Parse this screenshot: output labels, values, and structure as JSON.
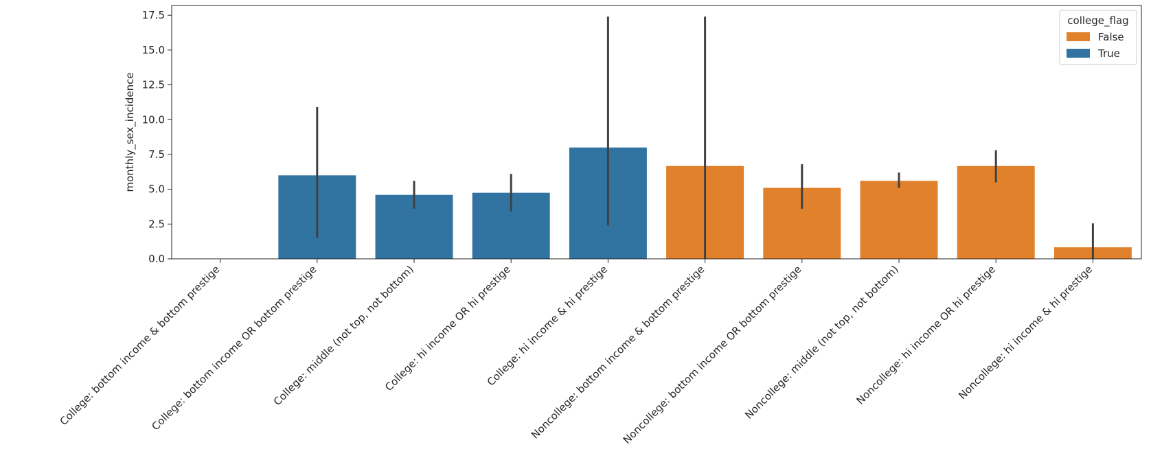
{
  "chart_data": {
    "type": "bar",
    "title": "",
    "xlabel": "",
    "ylabel": "monthly_sex_incidence",
    "ylim": [
      0,
      18.2
    ],
    "yticks": [
      "0.0",
      "2.5",
      "5.0",
      "7.5",
      "10.0",
      "12.5",
      "15.0",
      "17.5"
    ],
    "ytick_values": [
      0,
      2.5,
      5,
      7.5,
      10,
      12.5,
      15,
      17.5
    ],
    "grid": false,
    "legend": {
      "title": "college_flag",
      "placement": "top-right",
      "entries": [
        {
          "label": "False",
          "color": "#e1812c"
        },
        {
          "label": "True",
          "color": "#3274a1"
        }
      ]
    },
    "categories": [
      "College: bottom income & bottom prestige",
      "College: bottom income OR bottom prestige",
      "College: middle (not top, not bottom)",
      "College: hi income OR hi prestige",
      "College: hi income & hi prestige",
      "Noncollege: bottom income & bottom prestige",
      "Noncollege: bottom income OR bottom prestige",
      "Noncollege: middle (not top, not bottom)",
      "Noncollege: hi income OR hi prestige",
      "Noncollege: hi income & hi prestige"
    ],
    "series": [
      {
        "name": "True",
        "color": "#3274a1",
        "values": [
          0.0,
          6.0,
          4.6,
          4.75,
          8.0,
          null,
          null,
          null,
          null,
          null
        ],
        "err_low": [
          null,
          1.5,
          3.6,
          3.4,
          2.4,
          null,
          null,
          null,
          null,
          null
        ],
        "err_high": [
          null,
          10.9,
          5.6,
          6.1,
          17.4,
          null,
          null,
          null,
          null,
          null
        ]
      },
      {
        "name": "False",
        "color": "#e1812c",
        "values": [
          null,
          null,
          null,
          null,
          null,
          6.67,
          5.1,
          5.6,
          6.67,
          0.83
        ],
        "err_low": [
          null,
          null,
          null,
          null,
          null,
          0.0,
          3.6,
          5.1,
          5.5,
          0.0
        ],
        "err_high": [
          null,
          null,
          null,
          null,
          null,
          17.4,
          6.8,
          6.2,
          7.8,
          2.55
        ]
      }
    ]
  }
}
